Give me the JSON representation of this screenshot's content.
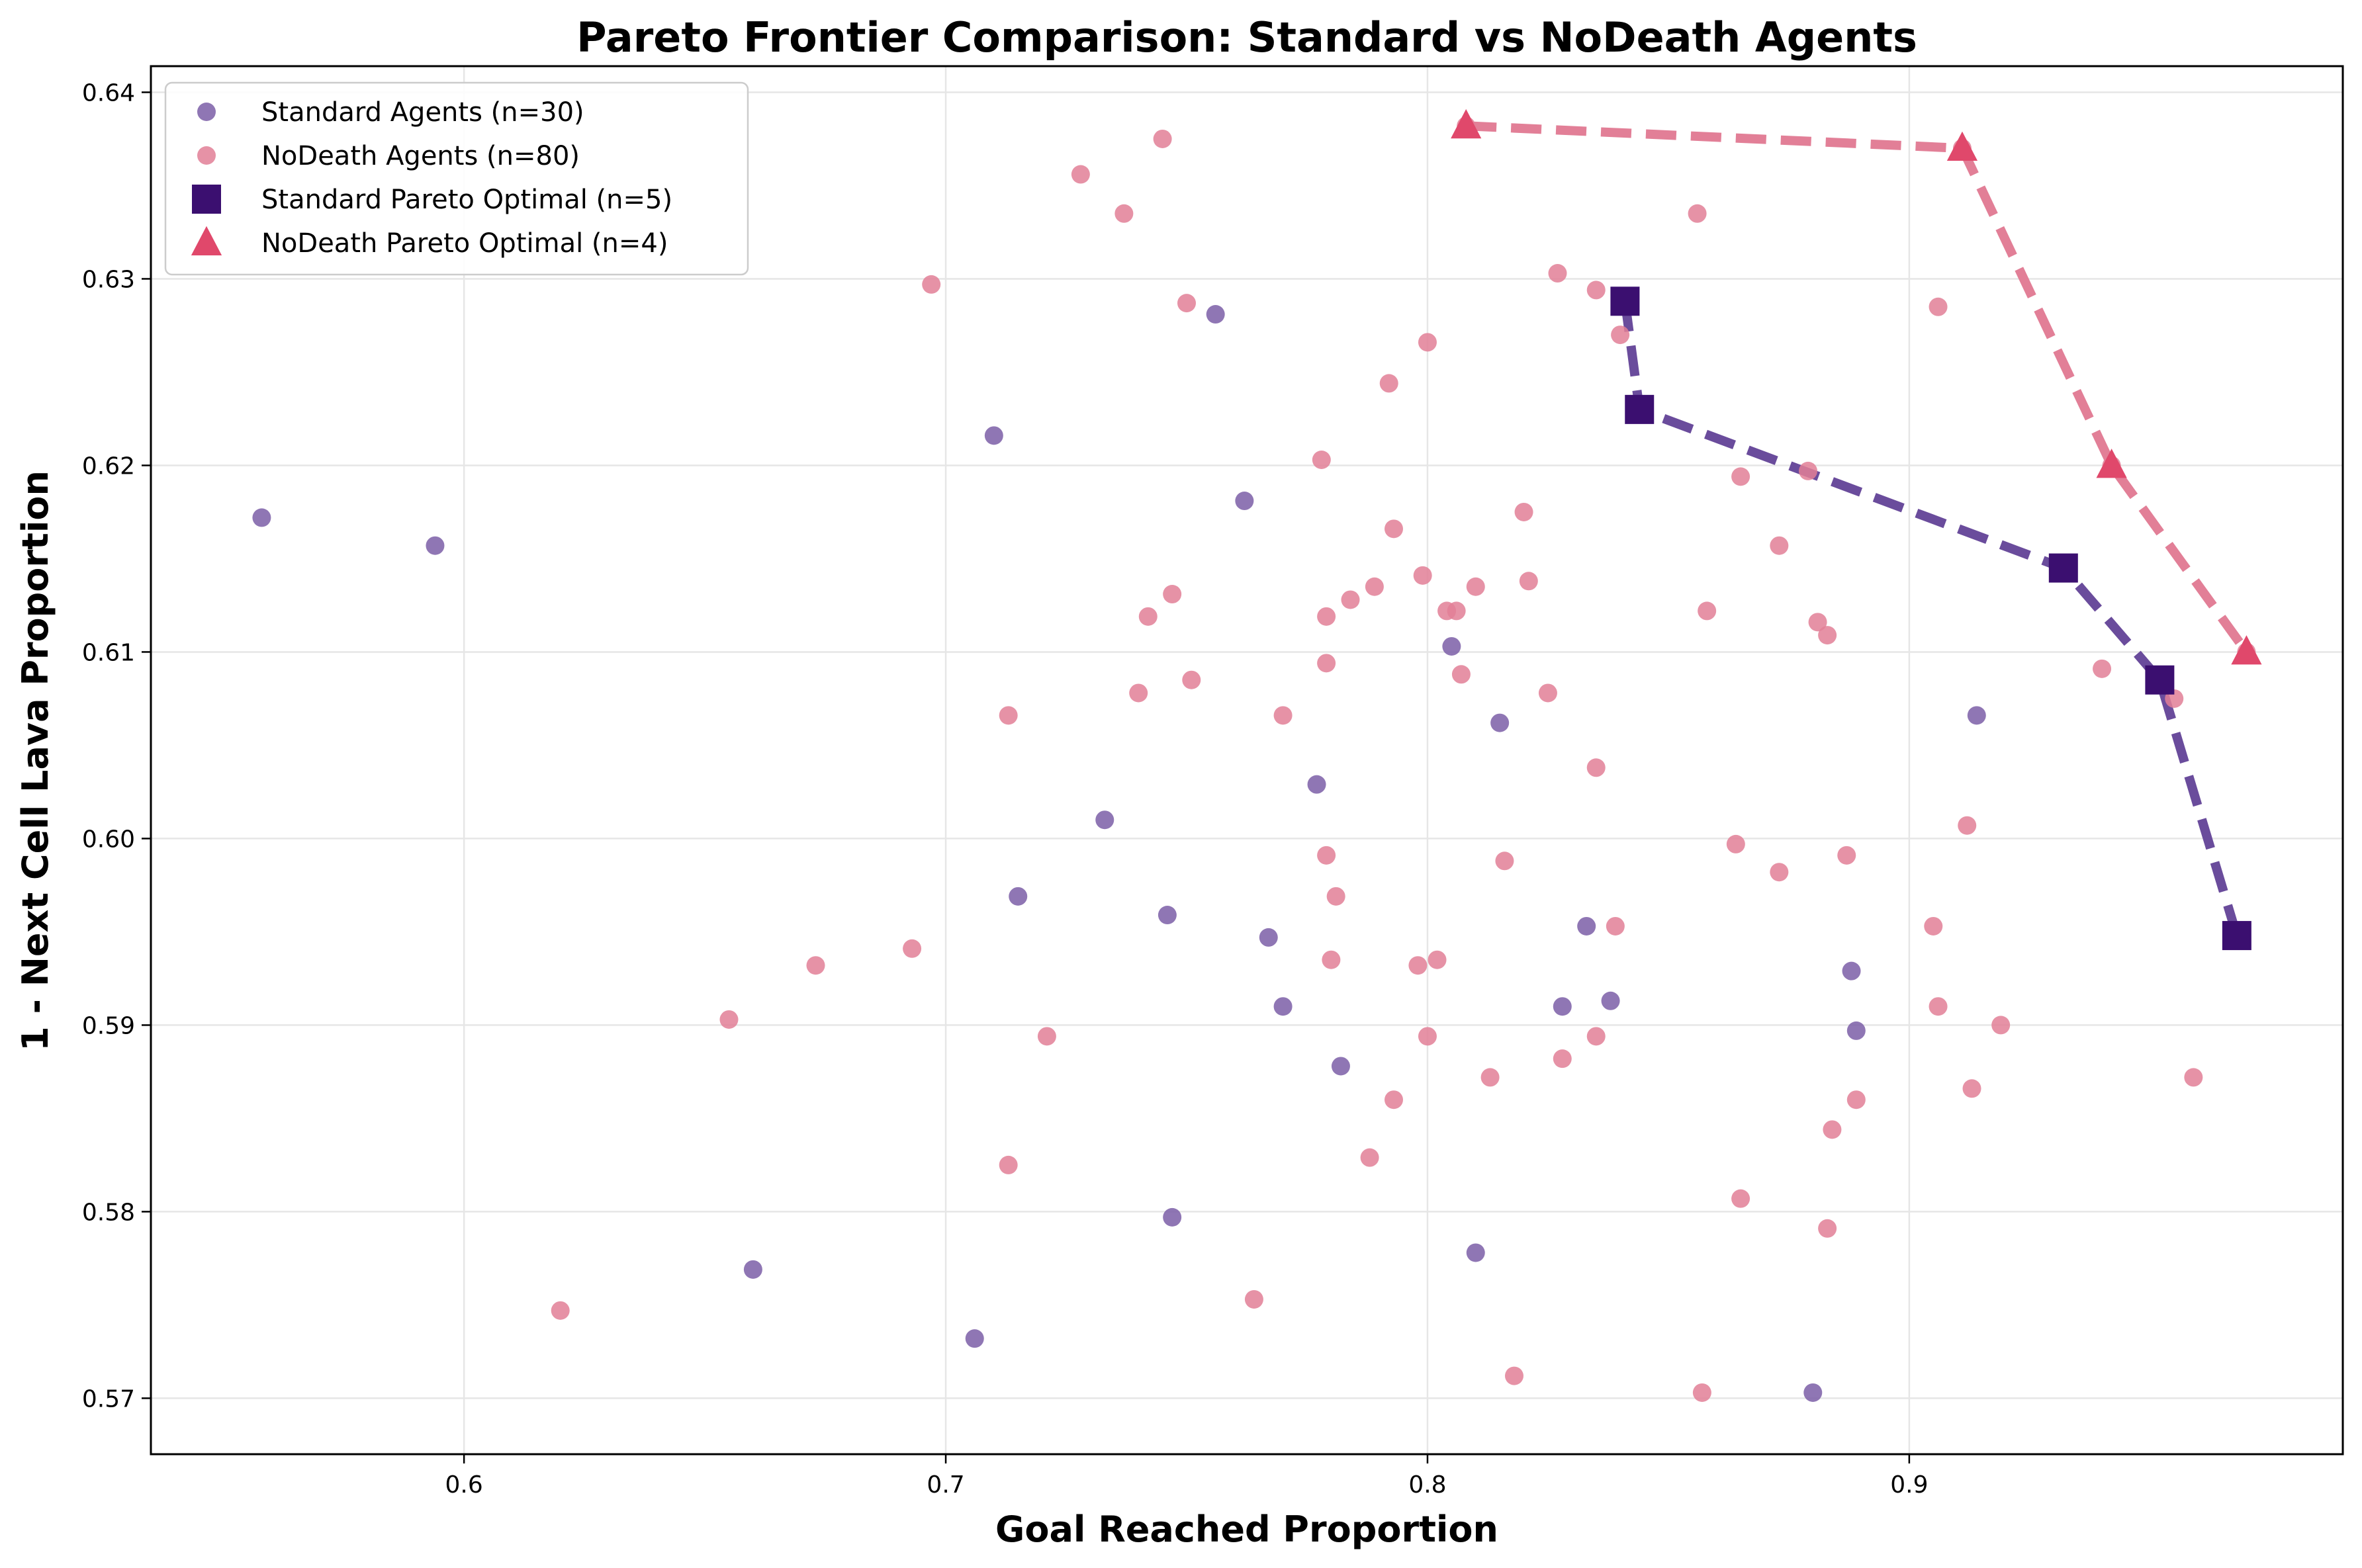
{
  "chart_data": {
    "type": "scatter",
    "title": "Pareto Frontier Comparison: Standard vs NoDeath Agents",
    "xlabel": "Goal Reached Proportion",
    "ylabel": "1 - Next Cell Lava Proportion",
    "xlim": [
      0.535,
      0.99
    ],
    "ylim": [
      0.567,
      0.6414
    ],
    "xticks": [
      "0.6",
      "0.7",
      "0.8",
      "0.9"
    ],
    "yticks": [
      "0.57",
      "0.58",
      "0.59",
      "0.60",
      "0.61",
      "0.62",
      "0.63",
      "0.64"
    ],
    "grid": true,
    "legend_position": "top-left",
    "series": [
      {
        "name": "Standard Agents (n=30)",
        "kind": "points",
        "marker": "circle",
        "color": "#7b5ea7",
        "points": [
          [
            0.558,
            0.6172
          ],
          [
            0.594,
            0.6157
          ],
          [
            0.66,
            0.5769
          ],
          [
            0.706,
            0.5732
          ],
          [
            0.71,
            0.6216
          ],
          [
            0.715,
            0.5969
          ],
          [
            0.733,
            0.601
          ],
          [
            0.746,
            0.5959
          ],
          [
            0.747,
            0.5797
          ],
          [
            0.756,
            0.6281
          ],
          [
            0.762,
            0.6181
          ],
          [
            0.767,
            0.5947
          ],
          [
            0.77,
            0.591
          ],
          [
            0.777,
            0.6029
          ],
          [
            0.782,
            0.5878
          ],
          [
            0.805,
            0.6103
          ],
          [
            0.81,
            0.5778
          ],
          [
            0.815,
            0.6062
          ],
          [
            0.828,
            0.591
          ],
          [
            0.833,
            0.5953
          ],
          [
            0.838,
            0.5913
          ],
          [
            0.841,
            0.6288
          ],
          [
            0.844,
            0.623
          ],
          [
            0.88,
            0.5703
          ],
          [
            0.888,
            0.5929
          ],
          [
            0.889,
            0.5897
          ],
          [
            0.914,
            0.6066
          ],
          [
            0.932,
            0.6145
          ],
          [
            0.952,
            0.6085
          ],
          [
            0.968,
            0.5948
          ]
        ]
      },
      {
        "name": "NoDeath Agents (n=80)",
        "kind": "points",
        "marker": "circle",
        "color": "#e27f97",
        "points": [
          [
            0.62,
            0.5747
          ],
          [
            0.655,
            0.5903
          ],
          [
            0.673,
            0.5932
          ],
          [
            0.693,
            0.5941
          ],
          [
            0.697,
            0.6297
          ],
          [
            0.713,
            0.6066
          ],
          [
            0.713,
            0.5825
          ],
          [
            0.721,
            0.5894
          ],
          [
            0.728,
            0.6356
          ],
          [
            0.737,
            0.6335
          ],
          [
            0.74,
            0.6078
          ],
          [
            0.742,
            0.6119
          ],
          [
            0.745,
            0.6375
          ],
          [
            0.747,
            0.6131
          ],
          [
            0.75,
            0.6287
          ],
          [
            0.751,
            0.6085
          ],
          [
            0.764,
            0.5753
          ],
          [
            0.77,
            0.6066
          ],
          [
            0.778,
            0.6203
          ],
          [
            0.779,
            0.6119
          ],
          [
            0.779,
            0.6094
          ],
          [
            0.779,
            0.5991
          ],
          [
            0.78,
            0.5935
          ],
          [
            0.781,
            0.5969
          ],
          [
            0.784,
            0.6128
          ],
          [
            0.788,
            0.5829
          ],
          [
            0.789,
            0.6135
          ],
          [
            0.792,
            0.6244
          ],
          [
            0.793,
            0.6166
          ],
          [
            0.793,
            0.586
          ],
          [
            0.798,
            0.5932
          ],
          [
            0.799,
            0.6141
          ],
          [
            0.8,
            0.6266
          ],
          [
            0.8,
            0.5894
          ],
          [
            0.802,
            0.5935
          ],
          [
            0.804,
            0.6122
          ],
          [
            0.806,
            0.6122
          ],
          [
            0.807,
            0.6088
          ],
          [
            0.81,
            0.6135
          ],
          [
            0.813,
            0.5872
          ],
          [
            0.816,
            0.5988
          ],
          [
            0.818,
            0.5712
          ],
          [
            0.82,
            0.6175
          ],
          [
            0.821,
            0.6138
          ],
          [
            0.825,
            0.6078
          ],
          [
            0.827,
            0.6303
          ],
          [
            0.828,
            0.5882
          ],
          [
            0.835,
            0.6294
          ],
          [
            0.835,
            0.6038
          ],
          [
            0.835,
            0.5894
          ],
          [
            0.839,
            0.5953
          ],
          [
            0.856,
            0.6335
          ],
          [
            0.857,
            0.5703
          ],
          [
            0.858,
            0.6122
          ],
          [
            0.864,
            0.5997
          ],
          [
            0.865,
            0.6194
          ],
          [
            0.865,
            0.5807
          ],
          [
            0.873,
            0.6157
          ],
          [
            0.873,
            0.5982
          ],
          [
            0.879,
            0.6197
          ],
          [
            0.881,
            0.6116
          ],
          [
            0.883,
            0.6109
          ],
          [
            0.883,
            0.5791
          ],
          [
            0.884,
            0.5844
          ],
          [
            0.887,
            0.5991
          ],
          [
            0.889,
            0.586
          ],
          [
            0.905,
            0.5953
          ],
          [
            0.906,
            0.6285
          ],
          [
            0.906,
            0.591
          ],
          [
            0.912,
            0.6007
          ],
          [
            0.913,
            0.5866
          ],
          [
            0.919,
            0.59
          ],
          [
            0.94,
            0.6091
          ],
          [
            0.955,
            0.6075
          ],
          [
            0.959,
            0.5872
          ],
          [
            0.808,
            0.6382
          ],
          [
            0.911,
            0.637
          ],
          [
            0.942,
            0.62
          ],
          [
            0.97,
            0.61
          ],
          [
            0.84,
            0.627
          ]
        ]
      },
      {
        "name": "Standard Pareto Optimal (n=5)",
        "kind": "frontier",
        "marker": "square",
        "color": "#3b0f70",
        "line_color": "#6a4c9c",
        "points": [
          [
            0.841,
            0.6288
          ],
          [
            0.844,
            0.623
          ],
          [
            0.932,
            0.6145
          ],
          [
            0.952,
            0.6085
          ],
          [
            0.968,
            0.5948
          ]
        ]
      },
      {
        "name": "NoDeath Pareto Optimal (n=4)",
        "kind": "frontier",
        "marker": "triangle",
        "color": "#e0486b",
        "line_color": "#e27f97",
        "points": [
          [
            0.808,
            0.6382
          ],
          [
            0.911,
            0.637
          ],
          [
            0.942,
            0.62
          ],
          [
            0.97,
            0.61
          ]
        ]
      }
    ]
  }
}
